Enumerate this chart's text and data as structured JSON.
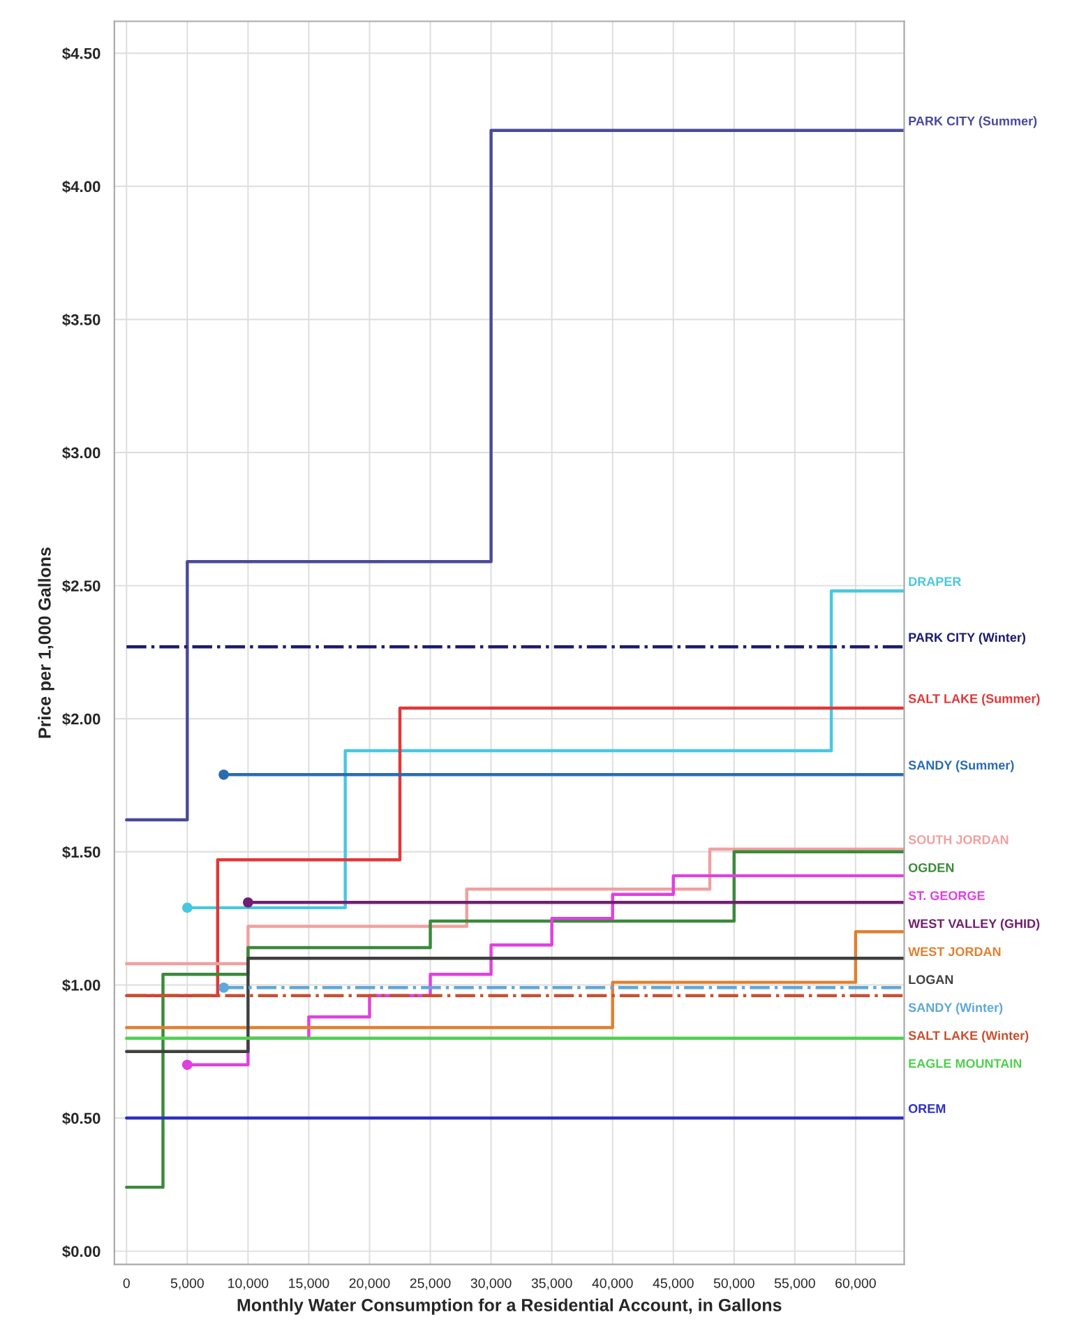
{
  "chart_data": {
    "type": "step",
    "xlabel": "Monthly Water Consumption for a Residential Account, in Gallons",
    "ylabel": "Price per 1,000 Gallons",
    "xlim": [
      -1000,
      64000
    ],
    "ylim": [
      -0.05,
      4.62
    ],
    "xticks": [
      0,
      {
        "value": 5000,
        "label": "5,000"
      },
      {
        "value": 10000,
        "label": "10,000"
      },
      {
        "value": 15000,
        "label": "15,000"
      },
      {
        "value": 20000,
        "label": "20,000"
      },
      {
        "value": 25000,
        "label": "25,000"
      },
      {
        "value": 30000,
        "label": "30,000"
      },
      {
        "value": 35000,
        "label": "35,000"
      },
      {
        "value": 40000,
        "label": "40,000"
      },
      {
        "value": 45000,
        "label": "45,000"
      },
      {
        "value": 50000,
        "label": "50,000"
      },
      {
        "value": 55000,
        "label": "55,000"
      },
      {
        "value": 60000,
        "label": "60,000"
      }
    ],
    "yticks": [
      {
        "value": 0,
        "label": "$0.00"
      },
      {
        "value": 0.5,
        "label": "$0.50"
      },
      {
        "value": 1,
        "label": "$1.00"
      },
      {
        "value": 1.5,
        "label": "$1.50"
      },
      {
        "value": 2,
        "label": "$2.00"
      },
      {
        "value": 2.5,
        "label": "$2.50"
      },
      {
        "value": 3,
        "label": "$3.00"
      },
      {
        "value": 3.5,
        "label": "$3.50"
      },
      {
        "value": 4,
        "label": "$4.00"
      },
      {
        "value": 4.5,
        "label": "$4.50"
      }
    ],
    "grid": true,
    "legend": false,
    "series": [
      {
        "name": "PARK CITY (Summer)",
        "color": "#4a4a9a",
        "x": [
          0,
          5000,
          30000,
          64000
        ],
        "values": [
          1.62,
          2.59,
          4.21,
          4.21
        ]
      },
      {
        "name": "DRAPER",
        "color": "#48c8e0",
        "x": [
          5000,
          18000,
          58000,
          64000
        ],
        "values": [
          1.29,
          1.88,
          2.48,
          2.48
        ]
      },
      {
        "name": "PARK CITY (Winter)",
        "color": "#1c1c70",
        "line_style": "dashdot",
        "x": [
          0,
          64000
        ],
        "values": [
          2.27,
          2.27
        ]
      },
      {
        "name": "SALT LAKE (Summer)",
        "color": "#e03838",
        "x": [
          0,
          7500,
          22500,
          64000
        ],
        "values": [
          0.96,
          1.47,
          2.04,
          2.04
        ]
      },
      {
        "name": "SANDY (Summer)",
        "color": "#2a6cb0",
        "x": [
          8000,
          64000
        ],
        "values": [
          1.79,
          1.79
        ]
      },
      {
        "name": "SOUTH JORDAN",
        "color": "#f0a0a0",
        "x": [
          0,
          10000,
          28000,
          48000,
          64000
        ],
        "values": [
          1.08,
          1.22,
          1.36,
          1.51,
          1.51
        ]
      },
      {
        "name": "OGDEN",
        "color": "#3a8a3a",
        "x": [
          0,
          3000,
          10000,
          25000,
          50000,
          64000
        ],
        "values": [
          0.24,
          1.04,
          1.14,
          1.24,
          1.5,
          1.5
        ]
      },
      {
        "name": "ST. GEORGE",
        "color": "#e040e0",
        "x": [
          5000,
          10000,
          15000,
          20000,
          25000,
          30000,
          35000,
          40000,
          45000,
          64000
        ],
        "values": [
          0.7,
          0.8,
          0.88,
          0.96,
          1.04,
          1.15,
          1.25,
          1.34,
          1.41,
          1.41
        ]
      },
      {
        "name": "WEST VALLEY (GHID)",
        "color": "#702070",
        "x": [
          10000,
          64000
        ],
        "values": [
          1.31,
          1.31
        ]
      },
      {
        "name": "WEST JORDAN",
        "color": "#e08030",
        "x": [
          0,
          40000,
          60000,
          64000
        ],
        "values": [
          0.84,
          1.01,
          1.2,
          1.2
        ]
      },
      {
        "name": "LOGAN",
        "color": "#404040",
        "x": [
          0,
          10000,
          64000
        ],
        "values": [
          0.75,
          1.1,
          1.1
        ]
      },
      {
        "name": "SANDY (Winter)",
        "color": "#60a8d8",
        "line_style": "dashdot",
        "x": [
          8000,
          64000
        ],
        "values": [
          0.99,
          0.99
        ]
      },
      {
        "name": "SALT LAKE (Winter)",
        "color": "#c85030",
        "line_style": "dashdot",
        "x": [
          0,
          64000
        ],
        "values": [
          0.96,
          0.96
        ]
      },
      {
        "name": "EAGLE MOUNTAIN",
        "color": "#50d050",
        "x": [
          0,
          64000
        ],
        "values": [
          0.8,
          0.8
        ]
      },
      {
        "name": "OREM",
        "color": "#3030c0",
        "x": [
          0,
          64000
        ],
        "values": [
          0.5,
          0.5
        ]
      },
      {
        "type": "scatter",
        "marker": "circle",
        "colors": [
          "#48c8e0",
          "#2a6cb0",
          "#e040e0",
          "#702070",
          "#60a8d8"
        ],
        "x": [
          5000,
          8000,
          5000,
          10000,
          8000
        ],
        "values": [
          1.29,
          1.79,
          0.7,
          1.31,
          0.99
        ]
      }
    ]
  }
}
